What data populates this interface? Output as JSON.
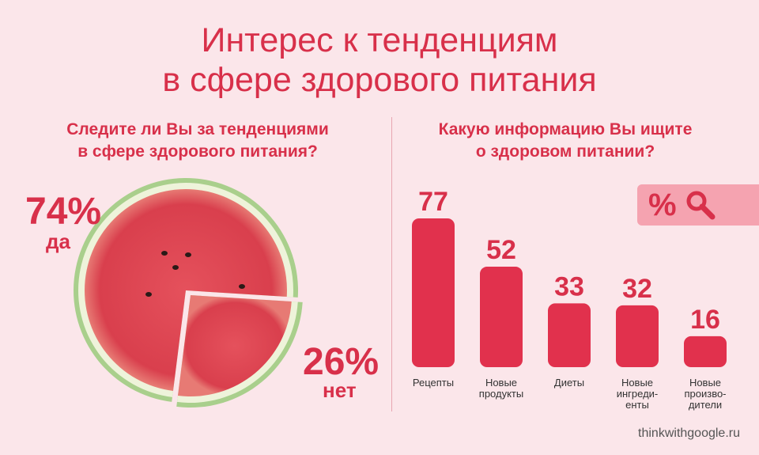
{
  "title": {
    "line1": "Интерес к тенденциям",
    "line2": "в сфере здорового питания"
  },
  "left": {
    "question_line1": "Следите ли Вы за тенденциями",
    "question_line2": "в сфере здорового питания?",
    "yes_value": "74%",
    "yes_label": "да",
    "no_value": "26%",
    "no_label": "нет"
  },
  "right": {
    "question_line1": "Какую информацию Вы ищите",
    "question_line2": "о здоровом питании?",
    "badge_text": "%"
  },
  "source": "thinkwithgoogle.ru",
  "colors": {
    "accent": "#d8304a",
    "bar": "#e1314d",
    "background": "#fbe6ea",
    "badge": "#f5a3b0"
  },
  "chart_data": [
    {
      "type": "pie",
      "categories": [
        "да",
        "нет"
      ],
      "values": [
        74,
        26
      ]
    },
    {
      "type": "bar",
      "categories": [
        [
          "Рецепты"
        ],
        [
          "Новые",
          "продукты"
        ],
        [
          "Диеты"
        ],
        [
          "Новые",
          "ингреди-",
          "енты"
        ],
        [
          "Новые",
          "произво-",
          "дители"
        ]
      ],
      "values": [
        77,
        52,
        33,
        32,
        16
      ]
    }
  ]
}
